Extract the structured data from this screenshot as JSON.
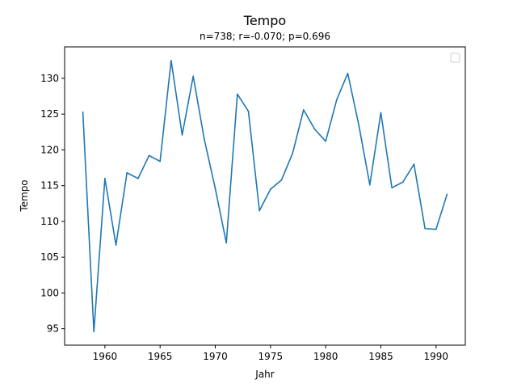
{
  "chart_data": {
    "type": "line",
    "title": "Tempo",
    "subtitle": "n=738; r=-0.070; p=0.696",
    "xlabel": "Jahr",
    "ylabel": "Tempo",
    "xlim": [
      1956.35,
      1992.65
    ],
    "ylim": [
      92.7,
      134.4
    ],
    "xticks": [
      1960,
      1965,
      1970,
      1975,
      1980,
      1985,
      1990
    ],
    "yticks": [
      95,
      100,
      105,
      110,
      115,
      120,
      125,
      130
    ],
    "legend": "upper right (empty)",
    "grid": false,
    "series": [
      {
        "color": "#1f77b4",
        "x": [
          1958,
          1959,
          1960,
          1961,
          1962,
          1963,
          1964,
          1965,
          1966,
          1967,
          1968,
          1969,
          1970,
          1971,
          1972,
          1973,
          1974,
          1975,
          1976,
          1977,
          1978,
          1979,
          1980,
          1981,
          1982,
          1983,
          1984,
          1985,
          1986,
          1987,
          1988,
          1989,
          1990,
          1991
        ],
        "values": [
          125.3,
          94.6,
          116.0,
          106.7,
          116.8,
          116.0,
          119.2,
          118.4,
          132.5,
          122.1,
          130.3,
          121.5,
          114.6,
          107.0,
          127.8,
          125.4,
          111.5,
          114.5,
          115.8,
          119.5,
          125.6,
          122.9,
          121.2,
          127.0,
          130.7,
          123.5,
          115.1,
          125.2,
          114.7,
          115.5,
          118.0,
          109.0,
          108.9,
          113.8
        ]
      }
    ]
  }
}
